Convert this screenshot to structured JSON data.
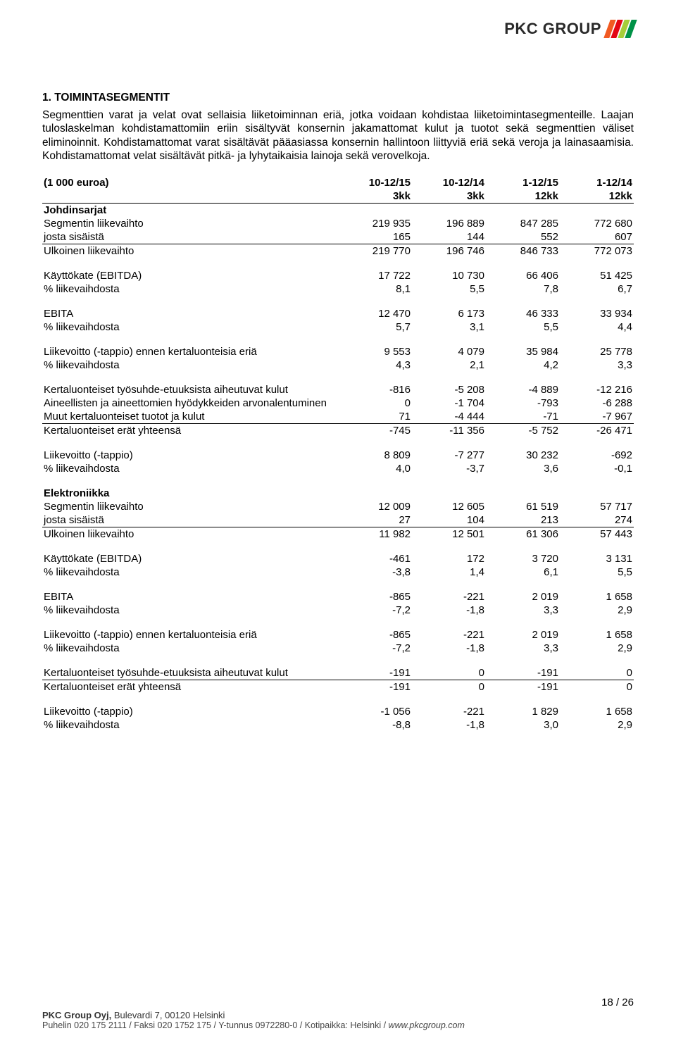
{
  "logo": {
    "text": "PKC GROUP",
    "stripe_colors": [
      "#f15a22",
      "#e30613",
      "#a6ce39",
      "#009247"
    ]
  },
  "heading": "1. TOIMINTASEGMENTIT",
  "paragraph": "Segmenttien varat ja velat ovat sellaisia liiketoiminnan eriä, jotka voidaan kohdistaa liiketoimintasegmenteille. Laajan tuloslaskelman kohdistamattomiin eriin sisältyvät konsernin jakamattomat kulut ja tuotot sekä segmenttien väliset eliminoinnit. Kohdistamattomat varat sisältävät pääasiassa konsernin hallintoon liittyviä eriä sekä veroja ja lainasaamisia. Kohdistamattomat velat sisältävät pitkä- ja lyhytaikaisia lainoja sekä verovelkoja.",
  "col_headers": {
    "c0": "(1 000 euroa)",
    "c1a": "10-12/15",
    "c1b": "3kk",
    "c2a": "10-12/14",
    "c2b": "3kk",
    "c3a": "1-12/15",
    "c3b": "12kk",
    "c4a": "1-12/14",
    "c4b": "12kk"
  },
  "sections": {
    "johdinsarjat": {
      "title": "Johdinsarjat",
      "rows": [
        {
          "label": "Segmentin liikevaihto",
          "v": [
            "219 935",
            "196 889",
            "847 285",
            "772 680"
          ]
        },
        {
          "label": "josta sisäistä",
          "v": [
            "165",
            "144",
            "552",
            "607"
          ],
          "underline": true
        },
        {
          "label": "Ulkoinen liikevaihto",
          "v": [
            "219 770",
            "196 746",
            "846 733",
            "772 073"
          ]
        }
      ],
      "blocks": [
        [
          {
            "label": "Käyttökate (EBITDA)",
            "v": [
              "17 722",
              "10 730",
              "66 406",
              "51 425"
            ]
          },
          {
            "label": "% liikevaihdosta",
            "v": [
              "8,1",
              "5,5",
              "7,8",
              "6,7"
            ]
          }
        ],
        [
          {
            "label": "EBITA",
            "v": [
              "12 470",
              "6 173",
              "46 333",
              "33 934"
            ]
          },
          {
            "label": "% liikevaihdosta",
            "v": [
              "5,7",
              "3,1",
              "5,5",
              "4,4"
            ]
          }
        ],
        [
          {
            "label": "Liikevoitto (-tappio) ennen kertaluonteisia eriä",
            "v": [
              "9 553",
              "4 079",
              "35 984",
              "25 778"
            ]
          },
          {
            "label": "% liikevaihdosta",
            "v": [
              "4,3",
              "2,1",
              "4,2",
              "3,3"
            ]
          }
        ],
        [
          {
            "label": "Kertaluonteiset työsuhde-etuuksista aiheutuvat kulut",
            "v": [
              "-816",
              "-5 208",
              "-4 889",
              "-12 216"
            ]
          },
          {
            "label": "Aineellisten ja aineettomien hyödykkeiden arvonalentuminen",
            "v": [
              "0",
              "-1 704",
              "-793",
              "-6 288"
            ]
          },
          {
            "label": "Muut kertaluonteiset tuotot ja kulut",
            "v": [
              "71",
              "-4 444",
              "-71",
              "-7 967"
            ],
            "underline": true
          },
          {
            "label": "Kertaluonteiset erät yhteensä",
            "v": [
              "-745",
              "-11 356",
              "-5 752",
              "-26 471"
            ]
          }
        ],
        [
          {
            "label": "Liikevoitto (-tappio)",
            "v": [
              "8 809",
              "-7 277",
              "30 232",
              "-692"
            ]
          },
          {
            "label": "% liikevaihdosta",
            "v": [
              "4,0",
              "-3,7",
              "3,6",
              "-0,1"
            ]
          }
        ]
      ]
    },
    "elektroniikka": {
      "title": "Elektroniikka",
      "rows": [
        {
          "label": "Segmentin liikevaihto",
          "v": [
            "12 009",
            "12 605",
            "61 519",
            "57 717"
          ]
        },
        {
          "label": "josta sisäistä",
          "v": [
            "27",
            "104",
            "213",
            "274"
          ],
          "underline": true
        },
        {
          "label": "Ulkoinen liikevaihto",
          "v": [
            "11 982",
            "12 501",
            "61 306",
            "57 443"
          ]
        }
      ],
      "blocks": [
        [
          {
            "label": "Käyttökate (EBITDA)",
            "v": [
              "-461",
              "172",
              "3 720",
              "3 131"
            ]
          },
          {
            "label": "% liikevaihdosta",
            "v": [
              "-3,8",
              "1,4",
              "6,1",
              "5,5"
            ]
          }
        ],
        [
          {
            "label": "EBITA",
            "v": [
              "-865",
              "-221",
              "2 019",
              "1 658"
            ]
          },
          {
            "label": "% liikevaihdosta",
            "v": [
              "-7,2",
              "-1,8",
              "3,3",
              "2,9"
            ]
          }
        ],
        [
          {
            "label": "Liikevoitto (-tappio) ennen kertaluonteisia eriä",
            "v": [
              "-865",
              "-221",
              "2 019",
              "1 658"
            ]
          },
          {
            "label": "% liikevaihdosta",
            "v": [
              "-7,2",
              "-1,8",
              "3,3",
              "2,9"
            ]
          }
        ],
        [
          {
            "label": "Kertaluonteiset työsuhde-etuuksista aiheutuvat kulut",
            "v": [
              "-191",
              "0",
              "-191",
              "0"
            ],
            "underline": true
          },
          {
            "label": "Kertaluonteiset erät yhteensä",
            "v": [
              "-191",
              "0",
              "-191",
              "0"
            ]
          }
        ],
        [
          {
            "label": "Liikevoitto (-tappio)",
            "v": [
              "-1 056",
              "-221",
              "1 829",
              "1 658"
            ]
          },
          {
            "label": "% liikevaihdosta",
            "v": [
              "-8,8",
              "-1,8",
              "3,0",
              "2,9"
            ]
          }
        ]
      ]
    }
  },
  "footer": {
    "page_num": "18 / 26",
    "company": "PKC Group Oyj,",
    "address": "Bulevardi 7, 00120 Helsinki",
    "line2_a": "Puhelin 020 175 2111 / Faksi 020 1752 175 / Y-tunnus 0972280-0 / Kotipaikka: Helsinki / ",
    "line2_b": "www.pkcgroup.com"
  }
}
